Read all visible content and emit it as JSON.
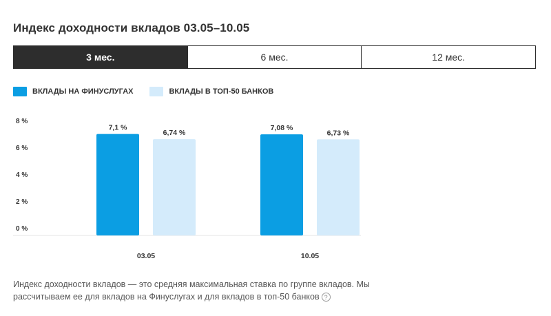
{
  "title": "Индекс доходности вкладов 03.05–10.05",
  "tabs": [
    {
      "label": "3 мес.",
      "active": true
    },
    {
      "label": "6 мес.",
      "active": false
    },
    {
      "label": "12 мес.",
      "active": false
    }
  ],
  "colors": {
    "finuslugi": "#0b9ee3",
    "top50": "#d4ebfb",
    "tab_active_bg": "#2d2d2d"
  },
  "chart_data": {
    "type": "bar",
    "categories": [
      "03.05",
      "10.05"
    ],
    "series": [
      {
        "name": "ВКЛАДЫ НА ФИНУСЛУГАХ",
        "values": [
          7.1,
          7.08
        ],
        "labels": [
          "7,1 %",
          "7,08 %"
        ]
      },
      {
        "name": "ВКЛАДЫ В ТОП-50 БАНКОВ",
        "values": [
          6.74,
          6.73
        ],
        "labels": [
          "6,74 %",
          "6,73 %"
        ]
      }
    ],
    "yticks": [
      {
        "value": 0,
        "label": "0 %"
      },
      {
        "value": 2,
        "label": "2 %"
      },
      {
        "value": 4,
        "label": "4 %"
      },
      {
        "value": 6,
        "label": "6 %"
      },
      {
        "value": 8,
        "label": "8 %"
      }
    ],
    "ylim": [
      0,
      8
    ],
    "grid": false,
    "legend": "top-left"
  },
  "footnote": {
    "text": "Индекс доходности вкладов — это средняя максимальная ставка по группе вкладов. Мы рассчитываем ее для вкладов на Финуслугах и для вкладов в топ-50 банков",
    "help_icon": "question-circle-icon",
    "help_symbol": "?"
  }
}
